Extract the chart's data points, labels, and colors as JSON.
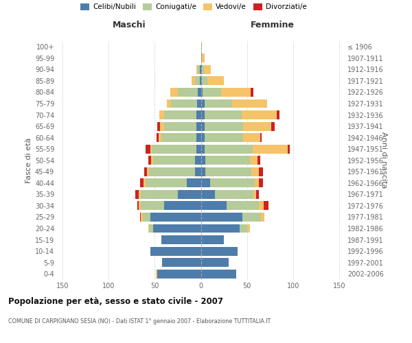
{
  "age_groups": [
    "0-4",
    "5-9",
    "10-14",
    "15-19",
    "20-24",
    "25-29",
    "30-34",
    "35-39",
    "40-44",
    "45-49",
    "50-54",
    "55-59",
    "60-64",
    "65-69",
    "70-74",
    "75-79",
    "80-84",
    "85-89",
    "90-94",
    "95-99",
    "100+"
  ],
  "birth_years": [
    "2002-2006",
    "1997-2001",
    "1992-1996",
    "1987-1991",
    "1982-1986",
    "1977-1981",
    "1972-1976",
    "1967-1971",
    "1962-1966",
    "1957-1961",
    "1952-1956",
    "1947-1951",
    "1942-1946",
    "1937-1941",
    "1932-1936",
    "1927-1931",
    "1922-1926",
    "1917-1921",
    "1912-1916",
    "1907-1911",
    "≤ 1906"
  ],
  "males": {
    "celibi": [
      47,
      42,
      55,
      43,
      52,
      55,
      40,
      25,
      15,
      6,
      6,
      5,
      5,
      5,
      5,
      4,
      3,
      1,
      1,
      0,
      0
    ],
    "coniugati": [
      0,
      0,
      0,
      0,
      4,
      8,
      25,
      40,
      45,
      50,
      46,
      48,
      38,
      35,
      35,
      28,
      22,
      5,
      2,
      0,
      0
    ],
    "vedovi": [
      2,
      0,
      0,
      0,
      1,
      2,
      2,
      2,
      2,
      2,
      2,
      2,
      3,
      4,
      5,
      5,
      8,
      4,
      2,
      0,
      0
    ],
    "divorziati": [
      0,
      0,
      0,
      0,
      0,
      1,
      2,
      4,
      4,
      3,
      3,
      5,
      2,
      3,
      0,
      0,
      0,
      0,
      0,
      0,
      0
    ]
  },
  "females": {
    "nubili": [
      38,
      30,
      40,
      25,
      42,
      45,
      28,
      15,
      10,
      5,
      5,
      4,
      4,
      4,
      4,
      4,
      2,
      1,
      1,
      1,
      0
    ],
    "coniugate": [
      0,
      0,
      0,
      0,
      8,
      20,
      35,
      42,
      48,
      50,
      48,
      52,
      42,
      42,
      40,
      30,
      20,
      6,
      2,
      0,
      0
    ],
    "vedove": [
      0,
      0,
      0,
      0,
      3,
      4,
      5,
      3,
      5,
      8,
      8,
      38,
      18,
      30,
      38,
      38,
      32,
      18,
      8,
      3,
      1
    ],
    "divorziate": [
      0,
      0,
      0,
      0,
      0,
      0,
      5,
      3,
      4,
      4,
      3,
      2,
      2,
      4,
      3,
      0,
      3,
      0,
      0,
      0,
      0
    ]
  },
  "colors": {
    "celibi": "#4e7dab",
    "coniugati": "#b5cb99",
    "vedovi": "#f5c36a",
    "divorziati": "#cc2222"
  },
  "title": "Popolazione per età, sesso e stato civile - 2007",
  "subtitle": "COMUNE DI CARPIGNANO SESIA (NO) - Dati ISTAT 1° gennaio 2007 - Elaborazione TUTTITALIA.IT",
  "ylabel_left": "Fasce di età",
  "ylabel_right": "Anni di nascita",
  "xlabel_left": "Maschi",
  "xlabel_right": "Femmine",
  "xlim": 155,
  "background_color": "#ffffff",
  "grid_color": "#cccccc"
}
